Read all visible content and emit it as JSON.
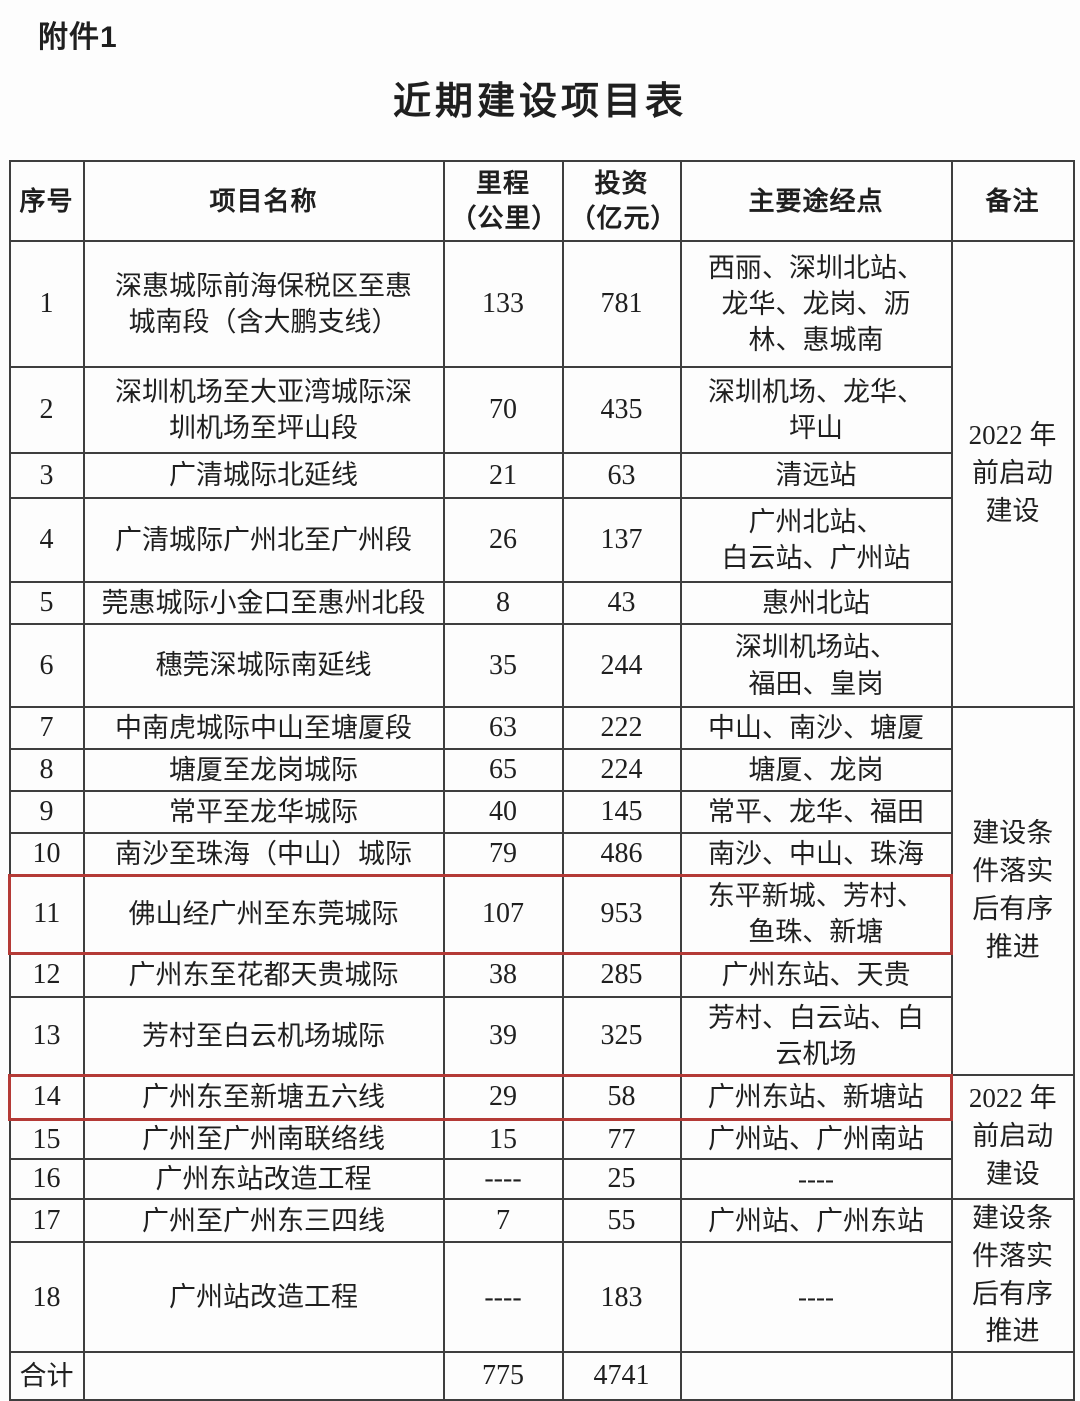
{
  "page": {
    "attachment_label": "附件1",
    "title": "近期建设项目表"
  },
  "colors": {
    "text": "#1f1f1f",
    "table_border": "#3e3e3e",
    "highlight_box": "#b43a36",
    "background": "#fdfdfd"
  },
  "table": {
    "headers": {
      "no": "序号",
      "name": "项目名称",
      "mileage": "里程\n（公里）",
      "investment": "投资\n（亿元）",
      "waypoints": "主要途经点",
      "remark": "备注"
    },
    "rows": [
      {
        "no": "1",
        "name": "深惠城际前海保税区至惠\n城南段（含大鹏支线）",
        "mileage": "133",
        "investment": "781",
        "waypoints": "西丽、深圳北站、\n龙华、龙岗、沥\n林、惠城南",
        "highlighted": false,
        "remark": {
          "text": "2022 年\n前启动\n建设",
          "rowspan": 6
        }
      },
      {
        "no": "2",
        "name": "深圳机场至大亚湾城际深\n圳机场至坪山段",
        "mileage": "70",
        "investment": "435",
        "waypoints": "深圳机场、龙华、\n坪山",
        "highlighted": false
      },
      {
        "no": "3",
        "name": "广清城际北延线",
        "mileage": "21",
        "investment": "63",
        "waypoints": "清远站",
        "highlighted": false
      },
      {
        "no": "4",
        "name": "广清城际广州北至广州段",
        "mileage": "26",
        "investment": "137",
        "waypoints": "广州北站、\n白云站、广州站",
        "highlighted": false
      },
      {
        "no": "5",
        "name": "莞惠城际小金口至惠州北段",
        "mileage": "8",
        "investment": "43",
        "waypoints": "惠州北站",
        "highlighted": false
      },
      {
        "no": "6",
        "name": "穗莞深城际南延线",
        "mileage": "35",
        "investment": "244",
        "waypoints": "深圳机场站、\n福田、皇岗",
        "highlighted": false
      },
      {
        "no": "7",
        "name": "中南虎城际中山至塘厦段",
        "mileage": "63",
        "investment": "222",
        "waypoints": "中山、南沙、塘厦",
        "highlighted": false,
        "remark": {
          "text": "建设条\n件落实\n后有序\n推进",
          "rowspan": 7
        }
      },
      {
        "no": "8",
        "name": "塘厦至龙岗城际",
        "mileage": "65",
        "investment": "224",
        "waypoints": "塘厦、龙岗",
        "highlighted": false
      },
      {
        "no": "9",
        "name": "常平至龙华城际",
        "mileage": "40",
        "investment": "145",
        "waypoints": "常平、龙华、福田",
        "highlighted": false
      },
      {
        "no": "10",
        "name": "南沙至珠海（中山）城际",
        "mileage": "79",
        "investment": "486",
        "waypoints": "南沙、中山、珠海",
        "highlighted": false
      },
      {
        "no": "11",
        "name": "佛山经广州至东莞城际",
        "mileage": "107",
        "investment": "953",
        "waypoints": "东平新城、芳村、\n鱼珠、新塘",
        "highlighted": true
      },
      {
        "no": "12",
        "name": "广州东至花都天贵城际",
        "mileage": "38",
        "investment": "285",
        "waypoints": "广州东站、天贵",
        "highlighted": false
      },
      {
        "no": "13",
        "name": "芳村至白云机场城际",
        "mileage": "39",
        "investment": "325",
        "waypoints": "芳村、白云站、白\n云机场",
        "highlighted": false
      },
      {
        "no": "14",
        "name": "广州东至新塘五六线",
        "mileage": "29",
        "investment": "58",
        "waypoints": "广州东站、新塘站",
        "highlighted": true,
        "remark": {
          "text": "2022 年\n前启动\n建设",
          "rowspan": 3
        }
      },
      {
        "no": "15",
        "name": "广州至广州南联络线",
        "mileage": "15",
        "investment": "77",
        "waypoints": "广州站、广州南站",
        "highlighted": false
      },
      {
        "no": "16",
        "name": "广州东站改造工程",
        "mileage": "----",
        "investment": "25",
        "waypoints": "----",
        "highlighted": false
      },
      {
        "no": "17",
        "name": "广州至广州东三四线",
        "mileage": "7",
        "investment": "55",
        "waypoints": "广州站、广州东站",
        "highlighted": false,
        "remark": {
          "text": "建设条\n件落实\n后有序\n推进",
          "rowspan": 2
        }
      },
      {
        "no": "18",
        "name": "广州站改造工程",
        "mileage": "----",
        "investment": "183",
        "waypoints": "----",
        "highlighted": false
      }
    ],
    "total": {
      "label": "合计",
      "name": "",
      "mileage": "775",
      "investment": "4741",
      "waypoints": "",
      "remark": ""
    }
  }
}
